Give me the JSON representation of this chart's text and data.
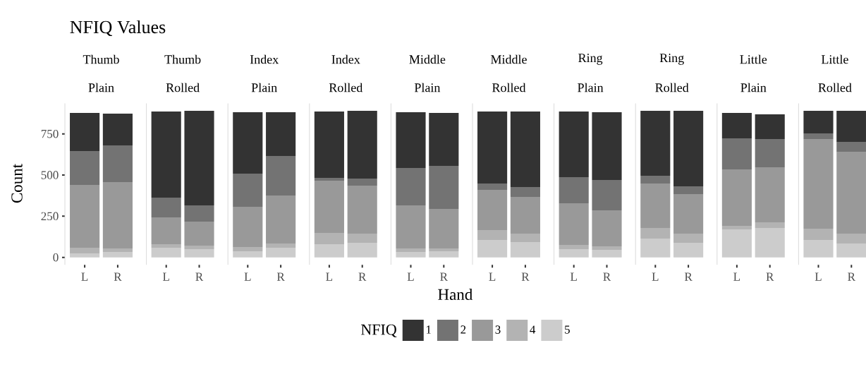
{
  "chart_data": [
    {
      "type": "bar",
      "stacked": true,
      "title": "Thumb",
      "subtitle": "Plain",
      "annotations": [
        "NFIQ Values"
      ],
      "ylabel": "Count",
      "legend_title": "NFIQ",
      "legend": "bottom",
      "categories": [
        "L",
        "R"
      ],
      "ylim": [
        -45,
        935
      ],
      "yticks": [
        0,
        250,
        500,
        750
      ],
      "series": [
        {
          "name": "5",
          "color": "#cccccc",
          "values": [
            24,
            33
          ]
        },
        {
          "name": "4",
          "color": "#b3b3b3",
          "values": [
            35,
            21
          ]
        },
        {
          "name": "3",
          "color": "#999999",
          "values": [
            381,
            403
          ]
        },
        {
          "name": "2",
          "color": "#737373",
          "values": [
            206,
            223
          ]
        },
        {
          "name": "1",
          "color": "#333333",
          "values": [
            231,
            193
          ]
        }
      ]
    },
    {
      "type": "bar",
      "stacked": true,
      "title": "Thumb",
      "subtitle": "Rolled",
      "tick_labels": "x",
      "categories": [
        "L",
        "R"
      ],
      "ylim": [
        -45,
        935
      ],
      "series": [
        {
          "color": "#cccccc",
          "values": [
            59,
            50
          ]
        },
        {
          "color": "#b3b3b3",
          "values": [
            21,
            21
          ]
        },
        {
          "color": "#999999",
          "values": [
            163,
            146
          ]
        },
        {
          "color": "#737373",
          "values": [
            120,
            99
          ]
        },
        {
          "color": "#333333",
          "values": [
            523,
            574
          ]
        }
      ]
    },
    {
      "type": "bar",
      "stacked": true,
      "title": "Index",
      "subtitle": "Plain",
      "tick_labels": "x",
      "categories": [
        "L",
        "R"
      ],
      "ylim": [
        -45,
        935
      ],
      "series": [
        {
          "color": "#cccccc",
          "values": [
            37,
            59
          ]
        },
        {
          "color": "#b3b3b3",
          "values": [
            26,
            25
          ]
        },
        {
          "color": "#999999",
          "values": [
            244,
            292
          ]
        },
        {
          "color": "#737373",
          "values": [
            202,
            240
          ]
        },
        {
          "color": "#333333",
          "values": [
            372,
            265
          ]
        }
      ]
    },
    {
      "type": "bar",
      "stacked": true,
      "title": "Index",
      "subtitle": "Rolled",
      "tick_labels": "x",
      "categories": [
        "L",
        "R"
      ],
      "ylim": [
        -45,
        935
      ],
      "series": [
        {
          "color": "#cccccc",
          "values": [
            80,
            89
          ]
        },
        {
          "color": "#b3b3b3",
          "values": [
            69,
            55
          ]
        },
        {
          "color": "#999999",
          "values": [
            317,
            292
          ]
        },
        {
          "color": "#737373",
          "values": [
            17,
            43
          ]
        },
        {
          "color": "#333333",
          "values": [
            403,
            411
          ]
        }
      ]
    },
    {
      "type": "bar",
      "stacked": true,
      "title": "Middle",
      "subtitle": "Plain",
      "xlabel": "Hand",
      "tick_labels": "x",
      "categories": [
        "L",
        "R"
      ],
      "ylim": [
        -45,
        935
      ],
      "series": [
        {
          "color": "#cccccc",
          "values": [
            33,
            37
          ]
        },
        {
          "color": "#b3b3b3",
          "values": [
            21,
            17
          ]
        },
        {
          "color": "#999999",
          "values": [
            262,
            240
          ]
        },
        {
          "color": "#737373",
          "values": [
            227,
            262
          ]
        },
        {
          "color": "#333333",
          "values": [
            338,
            321
          ]
        }
      ]
    },
    {
      "type": "bar",
      "stacked": true,
      "title": "Middle",
      "subtitle": "Rolled",
      "tick_labels": "x",
      "categories": [
        "L",
        "R"
      ],
      "ylim": [
        -45,
        935
      ],
      "series": [
        {
          "color": "#cccccc",
          "values": [
            106,
            93
          ]
        },
        {
          "color": "#b3b3b3",
          "values": [
            60,
            51
          ]
        },
        {
          "color": "#999999",
          "values": [
            244,
            223
          ]
        },
        {
          "color": "#737373",
          "values": [
            39,
            60
          ]
        },
        {
          "color": "#333333",
          "values": [
            437,
            459
          ]
        }
      ]
    },
    {
      "type": "bar",
      "stacked": true,
      "title": "Ring",
      "subtitle": "Plain",
      "tick_labels": "x",
      "categories": [
        "L",
        "R"
      ],
      "ylim": [
        -45,
        935
      ],
      "series": [
        {
          "color": "#cccccc",
          "values": [
            50,
            46
          ]
        },
        {
          "color": "#b3b3b3",
          "values": [
            26,
            21
          ]
        },
        {
          "color": "#999999",
          "values": [
            253,
            219
          ]
        },
        {
          "color": "#737373",
          "values": [
            158,
            184
          ]
        },
        {
          "color": "#333333",
          "values": [
            399,
            411
          ]
        }
      ]
    },
    {
      "type": "bar",
      "stacked": true,
      "title": "Ring",
      "subtitle": "Rolled",
      "tick_labels": "x",
      "categories": [
        "L",
        "R"
      ],
      "ylim": [
        -45,
        935
      ],
      "series": [
        {
          "color": "#cccccc",
          "values": [
            114,
            89
          ]
        },
        {
          "color": "#b3b3b3",
          "values": [
            65,
            55
          ]
        },
        {
          "color": "#999999",
          "values": [
            270,
            240
          ]
        },
        {
          "color": "#737373",
          "values": [
            47,
            47
          ]
        },
        {
          "color": "#333333",
          "values": [
            394,
            459
          ]
        }
      ]
    },
    {
      "type": "bar",
      "stacked": true,
      "title": "Little",
      "subtitle": "Plain",
      "tick_labels": "x",
      "categories": [
        "L",
        "R"
      ],
      "ylim": [
        -45,
        935
      ],
      "series": [
        {
          "color": "#cccccc",
          "values": [
            170,
            179
          ]
        },
        {
          "color": "#b3b3b3",
          "values": [
            21,
            34
          ]
        },
        {
          "color": "#999999",
          "values": [
            343,
            334
          ]
        },
        {
          "color": "#737373",
          "values": [
            189,
            172
          ]
        },
        {
          "color": "#333333",
          "values": [
            154,
            150
          ]
        }
      ]
    },
    {
      "type": "bar",
      "stacked": true,
      "title": "Little",
      "subtitle": "Rolled",
      "tick_labels": "x",
      "categories": [
        "L",
        "R"
      ],
      "ylim": [
        -45,
        935
      ],
      "series": [
        {
          "color": "#cccccc",
          "values": [
            106,
            84
          ]
        },
        {
          "color": "#b3b3b3",
          "values": [
            68,
            60
          ]
        },
        {
          "color": "#999999",
          "values": [
            545,
            497
          ]
        },
        {
          "color": "#737373",
          "values": [
            34,
            60
          ]
        },
        {
          "color": "#333333",
          "values": [
            137,
            189
          ]
        }
      ]
    }
  ]
}
